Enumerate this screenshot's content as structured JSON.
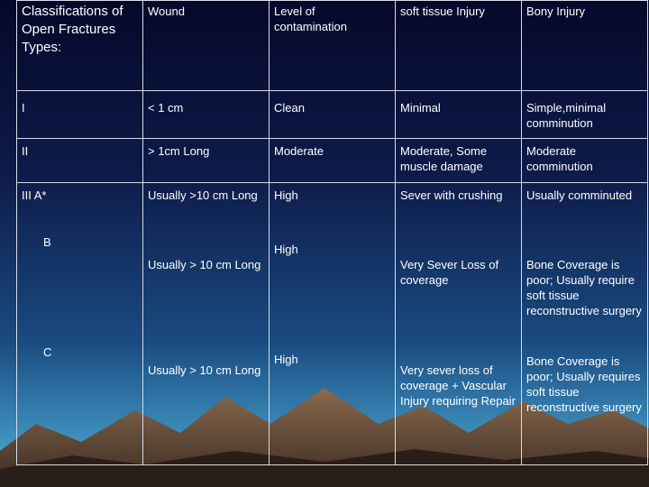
{
  "table": {
    "header": [
      "Classifications of Open Fractures Types:",
      "Wound",
      "Level of contamination",
      "soft tissue Injury",
      "Bony Injury"
    ],
    "rows": [
      [
        "I",
        "< 1 cm",
        "Clean",
        "Minimal",
        "Simple,minimal comminution"
      ],
      [
        "II",
        "> 1cm Long",
        "Moderate",
        "Moderate, Some muscle damage",
        "Moderate comminution"
      ],
      [
        "III A*",
        "Usually >10 cm Long",
        "High",
        "Sever with crushing",
        "Usually comminuted"
      ],
      [
        "B",
        "Usually > 10 cm Long",
        "High",
        "Very Sever Loss of coverage",
        "Bone Coverage is poor; Usually require soft tissue reconstructive surgery"
      ],
      [
        "C",
        "Usually > 10 cm Long",
        "High",
        "Very sever loss of coverage + Vascular Injury requiring Repair",
        "Bone Coverage is poor; Usually requires soft tissue reconstructive surgery"
      ]
    ]
  }
}
